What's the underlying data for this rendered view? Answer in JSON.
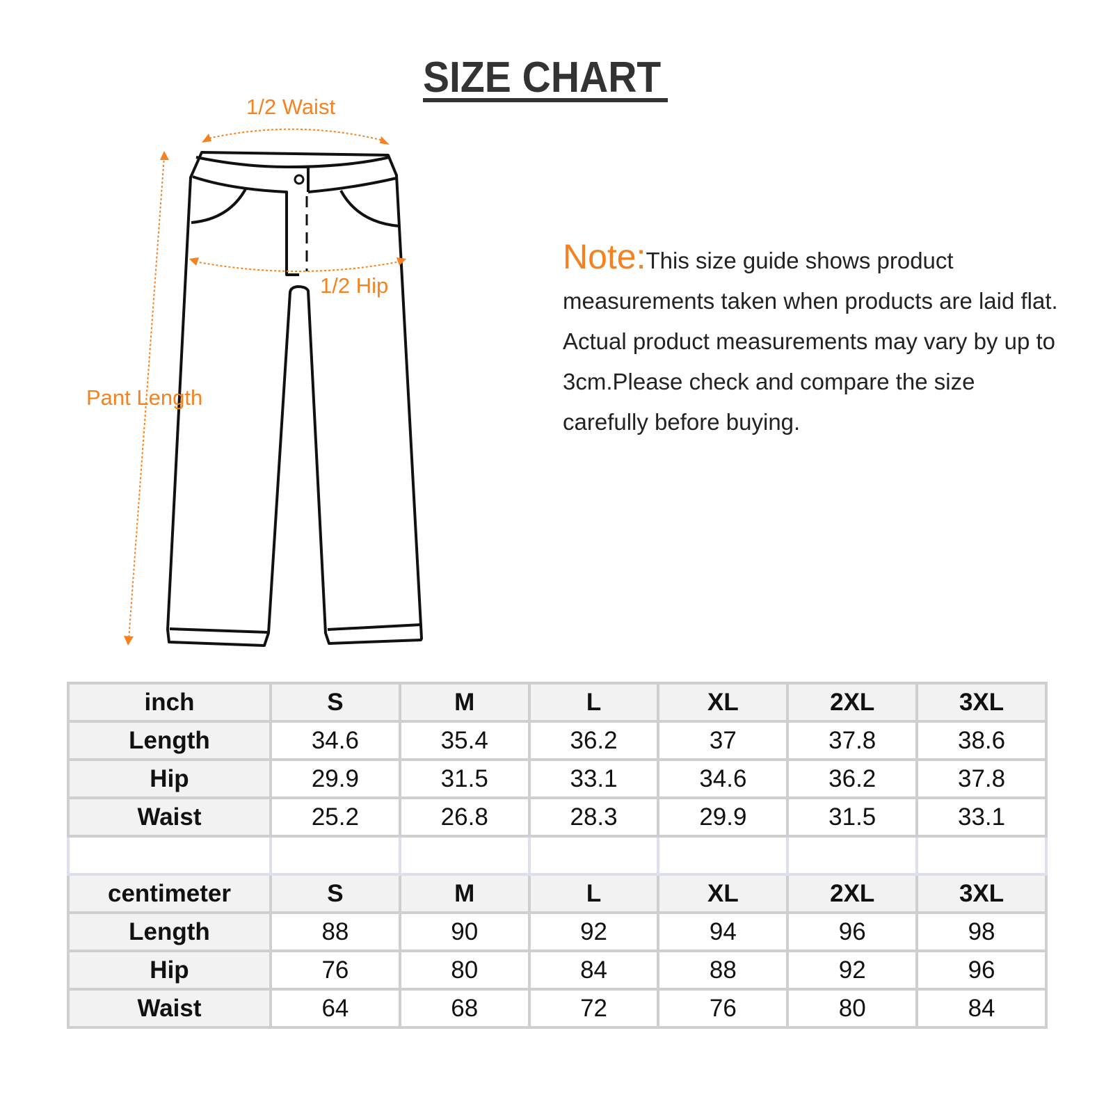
{
  "title": "SIZE CHART",
  "diagram": {
    "waist_label": "1/2 Waist",
    "hip_label": "1/2 Hip",
    "length_label": "Pant Length",
    "accent_color": "#f5821f"
  },
  "note": {
    "heading": "Note:",
    "text": "This size guide shows product measurements taken when products are laid flat. Actual product measurements may vary by up to 3cm.Please check and compare the size carefully before buying."
  },
  "tables": [
    {
      "unit": "inch",
      "sizes": [
        "S",
        "M",
        "L",
        "XL",
        "2XL",
        "3XL"
      ],
      "rows": [
        {
          "label": "Length",
          "values": [
            "34.6",
            "35.4",
            "36.2",
            "37",
            "37.8",
            "38.6"
          ]
        },
        {
          "label": "Hip",
          "values": [
            "29.9",
            "31.5",
            "33.1",
            "34.6",
            "36.2",
            "37.8"
          ]
        },
        {
          "label": "Waist",
          "values": [
            "25.2",
            "26.8",
            "28.3",
            "29.9",
            "31.5",
            "33.1"
          ]
        }
      ]
    },
    {
      "unit": "centimeter",
      "sizes": [
        "S",
        "M",
        "L",
        "XL",
        "2XL",
        "3XL"
      ],
      "rows": [
        {
          "label": "Length",
          "values": [
            "88",
            "90",
            "92",
            "94",
            "96",
            "98"
          ]
        },
        {
          "label": "Hip",
          "values": [
            "76",
            "80",
            "84",
            "88",
            "92",
            "96"
          ]
        },
        {
          "label": "Waist",
          "values": [
            "64",
            "68",
            "72",
            "76",
            "80",
            "84"
          ]
        }
      ]
    }
  ]
}
